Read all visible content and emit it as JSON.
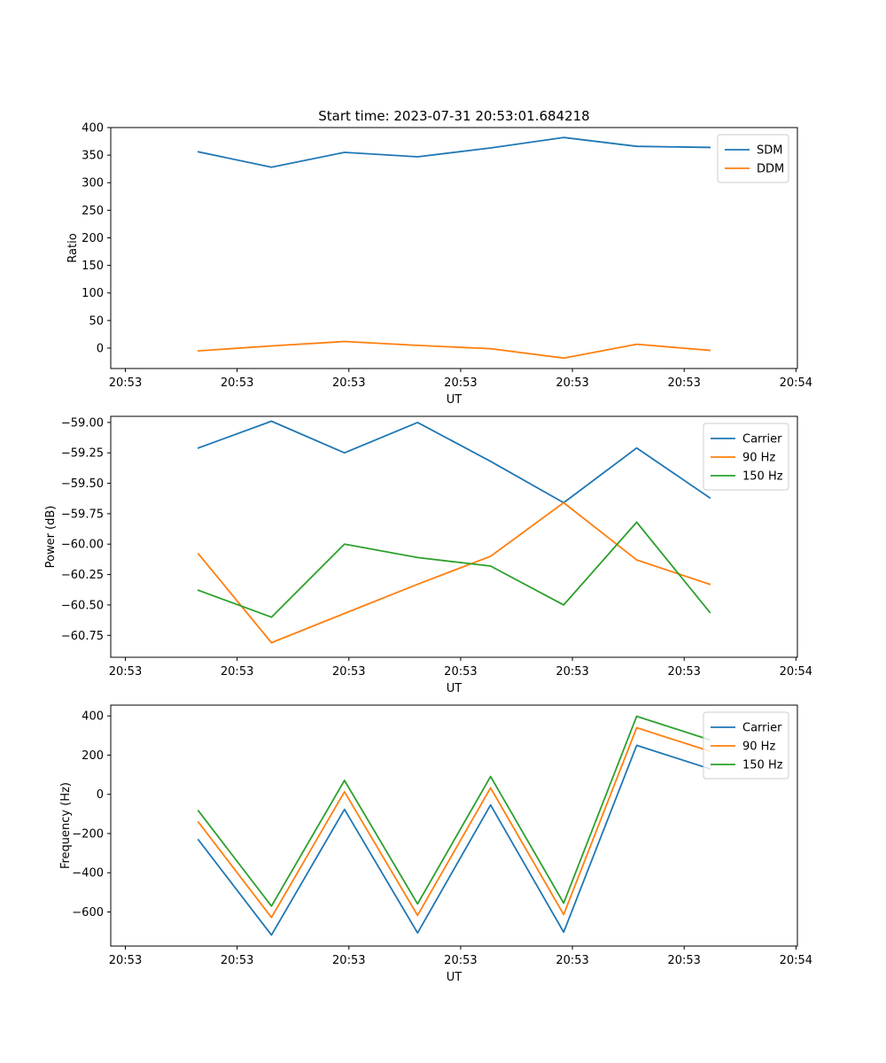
{
  "figure_title": "Start time: 2023-07-31 20:53:01.684218",
  "colors": {
    "blue": "#1f77b4",
    "orange": "#ff7f0e",
    "green": "#2ca02c"
  },
  "chart_data": [
    {
      "type": "line",
      "title": "Start time: 2023-07-31 20:53:01.684218",
      "xlabel": "UT",
      "ylabel": "Ratio",
      "x": [
        1,
        2,
        3,
        4,
        5,
        6,
        7,
        8
      ],
      "x_tick_values": [
        0,
        1.53,
        3.06,
        4.59,
        6.12,
        7.65,
        9.18
      ],
      "x_tick_labels": [
        "20:53",
        "20:53",
        "20:53",
        "20:53",
        "20:53",
        "20:53",
        "20:54"
      ],
      "xlim": [
        -0.2,
        9.2
      ],
      "ylim": [
        -37,
        400
      ],
      "y_ticks": [
        0,
        50,
        100,
        150,
        200,
        250,
        300,
        350,
        400
      ],
      "y_tick_labels": [
        "0",
        "50",
        "100",
        "150",
        "200",
        "250",
        "300",
        "350",
        "400"
      ],
      "legend_position": "top-right",
      "series": [
        {
          "name": "SDM",
          "color": "#1f77b4",
          "values": [
            356,
            328,
            355,
            347,
            363,
            382,
            366,
            364
          ]
        },
        {
          "name": "DDM",
          "color": "#ff7f0e",
          "values": [
            -5,
            4,
            12,
            5,
            -1,
            -18,
            7,
            -4
          ]
        }
      ]
    },
    {
      "type": "line",
      "title": "",
      "xlabel": "UT",
      "ylabel": "Power (dB)",
      "x": [
        1,
        2,
        3,
        4,
        5,
        6,
        7,
        8
      ],
      "x_tick_values": [
        0,
        1.53,
        3.06,
        4.59,
        6.12,
        7.65,
        9.18
      ],
      "x_tick_labels": [
        "20:53",
        "20:53",
        "20:53",
        "20:53",
        "20:53",
        "20:53",
        "20:54"
      ],
      "xlim": [
        -0.2,
        9.2
      ],
      "ylim": [
        -60.93,
        -58.95
      ],
      "y_ticks": [
        -60.75,
        -60.5,
        -60.25,
        -60.0,
        -59.75,
        -59.5,
        -59.25,
        -59.0
      ],
      "y_tick_labels": [
        "−60.75",
        "−60.50",
        "−60.25",
        "−60.00",
        "−59.75",
        "−59.50",
        "−59.25",
        "−59.00"
      ],
      "legend_position": "top-right",
      "series": [
        {
          "name": "Carrier",
          "color": "#1f77b4",
          "values": [
            -59.21,
            -58.99,
            -59.25,
            -59.0,
            -59.32,
            -59.66,
            -59.21,
            -59.62
          ]
        },
        {
          "name": "90 Hz",
          "color": "#ff7f0e",
          "values": [
            -60.08,
            -60.81,
            -60.57,
            -60.33,
            -60.1,
            -59.66,
            -60.13,
            -60.33
          ]
        },
        {
          "name": "150 Hz",
          "color": "#2ca02c",
          "values": [
            -60.38,
            -60.6,
            -60.0,
            -60.11,
            -60.18,
            -60.5,
            -59.82,
            -60.56
          ]
        }
      ]
    },
    {
      "type": "line",
      "title": "",
      "xlabel": "UT",
      "ylabel": "Frequency (Hz)",
      "x": [
        1,
        2,
        3,
        4,
        5,
        6,
        7,
        8
      ],
      "x_tick_values": [
        0,
        1.53,
        3.06,
        4.59,
        6.12,
        7.65,
        9.18
      ],
      "x_tick_labels": [
        "20:53",
        "20:53",
        "20:53",
        "20:53",
        "20:53",
        "20:53",
        "20:54"
      ],
      "xlim": [
        -0.2,
        9.2
      ],
      "ylim": [
        -774,
        455
      ],
      "y_ticks": [
        -600,
        -400,
        -200,
        0,
        200,
        400
      ],
      "y_tick_labels": [
        "−600",
        "−400",
        "−200",
        "0",
        "200",
        "400"
      ],
      "legend_position": "top-right",
      "series": [
        {
          "name": "Carrier",
          "color": "#1f77b4",
          "values": [
            -232,
            -718,
            -77,
            -707,
            -54,
            -703,
            250,
            130
          ]
        },
        {
          "name": "90 Hz",
          "color": "#ff7f0e",
          "values": [
            -142,
            -628,
            13,
            -617,
            33,
            -613,
            340,
            220
          ]
        },
        {
          "name": "150 Hz",
          "color": "#2ca02c",
          "values": [
            -84,
            -570,
            71,
            -559,
            91,
            -555,
            398,
            278
          ]
        }
      ]
    }
  ]
}
